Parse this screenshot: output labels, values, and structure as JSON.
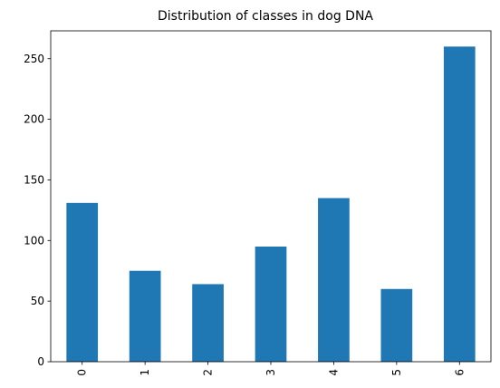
{
  "chart_data": {
    "type": "bar",
    "title": "Distribution of classes in dog DNA",
    "xlabel": "",
    "ylabel": "",
    "categories": [
      "0",
      "1",
      "2",
      "3",
      "4",
      "5",
      "6"
    ],
    "values": [
      131,
      75,
      64,
      95,
      135,
      60,
      260
    ],
    "ylim": [
      0,
      273
    ],
    "yticks": [
      0,
      50,
      100,
      150,
      200,
      250
    ],
    "bar_color": "#1f77b4",
    "x_tick_rotation": 90,
    "grid": false,
    "legend": "none"
  }
}
